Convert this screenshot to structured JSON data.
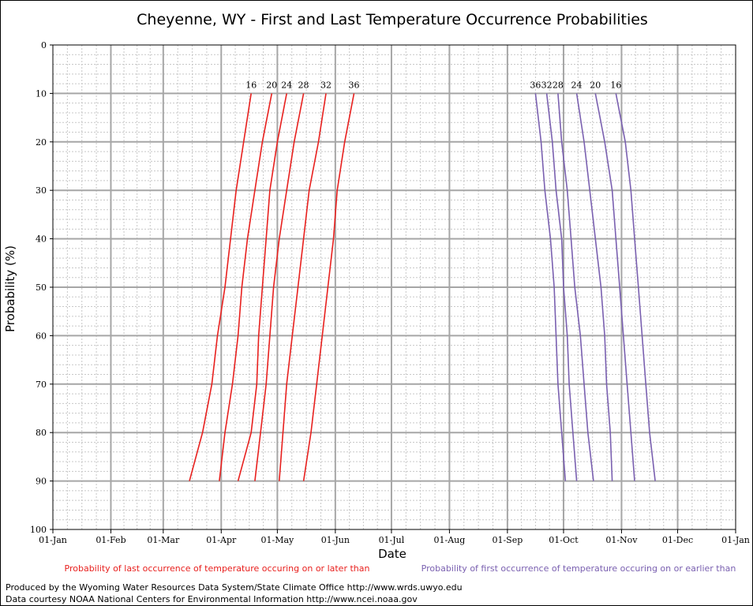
{
  "chart_data": {
    "type": "line",
    "title": "Cheyenne, WY - First and Last Temperature Occurrence Probabilities",
    "xlabel": "Date",
    "ylabel": "Probability (%)",
    "x_ticks": [
      "01-Jan",
      "01-Feb",
      "01-Mar",
      "01-Apr",
      "01-May",
      "01-Jun",
      "01-Jul",
      "01-Aug",
      "01-Sep",
      "01-Oct",
      "01-Nov",
      "01-Dec",
      "01-Jan"
    ],
    "y_ticks": [
      "0",
      "10",
      "20",
      "30",
      "40",
      "50",
      "60",
      "70",
      "80",
      "90",
      "100"
    ],
    "ylim": [
      0,
      100
    ],
    "y_inverted": true,
    "grid": true,
    "probabilities": [
      10,
      20,
      30,
      40,
      50,
      60,
      70,
      80,
      90
    ],
    "last_occurrence": {
      "color": "#e8201e",
      "legend": "Probability of last occurrence of temperature occuring on or later than",
      "series": [
        {
          "name": "16",
          "doy": [
            106,
            102,
            98,
            95,
            92,
            88,
            85,
            80,
            73
          ]
        },
        {
          "name": "20",
          "doy": [
            117,
            112,
            108,
            104,
            101,
            99,
            96,
            92,
            89
          ]
        },
        {
          "name": "24",
          "doy": [
            125,
            120,
            116,
            114,
            112,
            110,
            109,
            106,
            99
          ]
        },
        {
          "name": "28",
          "doy": [
            134,
            129,
            125,
            121,
            118,
            116,
            114,
            111,
            108
          ]
        },
        {
          "name": "32",
          "doy": [
            146,
            142,
            137,
            134,
            131,
            128,
            125,
            123,
            121
          ]
        },
        {
          "name": "36",
          "doy": [
            161,
            156,
            152,
            150,
            147,
            144,
            141,
            138,
            134
          ]
        }
      ]
    },
    "first_occurrence": {
      "color": "#7a60b0",
      "legend": "Probability of first occurrence of temperature occuring on or earlier than",
      "series": [
        {
          "name": "36",
          "doy": [
            258,
            261,
            263,
            266,
            268,
            269,
            270,
            272,
            274
          ]
        },
        {
          "name": "32",
          "doy": [
            264,
            267,
            269,
            272,
            273,
            275,
            276,
            278,
            280
          ]
        },
        {
          "name": "28",
          "doy": [
            270,
            272,
            275,
            277,
            279,
            282,
            284,
            286,
            289
          ]
        },
        {
          "name": "24",
          "doy": [
            280,
            284,
            287,
            290,
            293,
            295,
            296,
            298,
            299
          ]
        },
        {
          "name": "20",
          "doy": [
            290,
            295,
            299,
            301,
            303,
            305,
            307,
            309,
            311
          ]
        },
        {
          "name": "16",
          "doy": [
            301,
            306,
            309,
            311,
            313,
            315,
            317,
            319,
            322
          ]
        }
      ]
    }
  },
  "credits": {
    "line1": "Produced by the Wyoming Water Resources Data System/State Climate Office http://www.wrds.uwyo.edu",
    "line2": "Data courtesy NOAA National Centers for Environmental Information http://www.ncei.noaa.gov"
  }
}
